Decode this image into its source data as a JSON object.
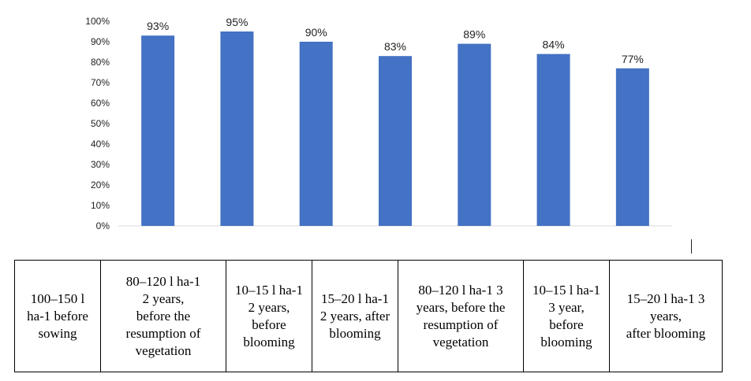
{
  "chart_data": {
    "type": "bar",
    "values": [
      0.93,
      0.95,
      0.9,
      0.83,
      0.89,
      0.84,
      0.77
    ],
    "data_labels": [
      "93%",
      "95%",
      "90%",
      "83%",
      "89%",
      "84%",
      "77%"
    ],
    "ylim": [
      0,
      1
    ],
    "yticks": [
      "0%",
      "10%",
      "20%",
      "30%",
      "40%",
      "50%",
      "60%",
      "70%",
      "80%",
      "90%",
      "100%"
    ],
    "grid": false,
    "bar_color": "#4472c4",
    "categories": [
      "100–150 l\nha-1 before\nsowing",
      "80–120 l ha-1\n2 years,\nbefore the\nresumption of\nvegetation",
      "10–15 l ha-1\n2 years,\nbefore\nblooming",
      "15–20 l ha-1\n2 years, after\nblooming",
      "80–120 l ha-1 3\nyears, before the\nresumption of\nvegetation",
      "10–15 l ha-1\n3 year,\nbefore\nblooming",
      "15–20 l ha-1 3\nyears,\nafter blooming"
    ]
  }
}
